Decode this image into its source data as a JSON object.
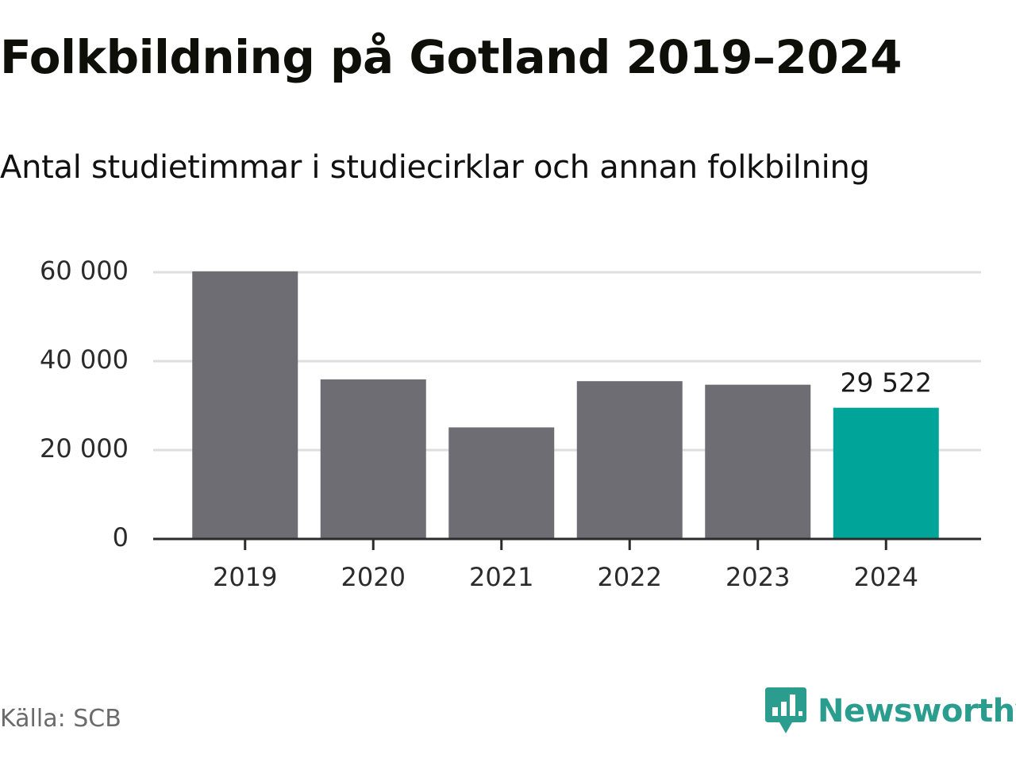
{
  "chart_data": {
    "type": "bar",
    "title": "Folkbildning på Gotland 2019–2024",
    "subtitle": "Antal studietimmar i studiecirklar och annan folkbilning",
    "categories": [
      "2019",
      "2020",
      "2021",
      "2022",
      "2023",
      "2024"
    ],
    "values": [
      60200,
      35900,
      25100,
      35500,
      34700,
      29522
    ],
    "highlight_index": 5,
    "data_labels": [
      {
        "index": 5,
        "text": "29 522"
      }
    ],
    "yticks": [
      {
        "value": 0,
        "label": "0"
      },
      {
        "value": 20000,
        "label": "20 000"
      },
      {
        "value": 40000,
        "label": "40 000"
      },
      {
        "value": 60000,
        "label": "60 000"
      }
    ],
    "ylim": [
      0,
      60000
    ],
    "xlabel": "",
    "ylabel": "",
    "grid": true,
    "colors": {
      "bar": "#6e6d73",
      "highlight": "#00a499",
      "grid": "#dedede",
      "axis": "#2b2b2b"
    }
  },
  "source": "Källa: SCB",
  "brand": {
    "name": "Newsworthy",
    "icon": "newsworthy-logo-icon",
    "color": "#2a9d8f"
  }
}
